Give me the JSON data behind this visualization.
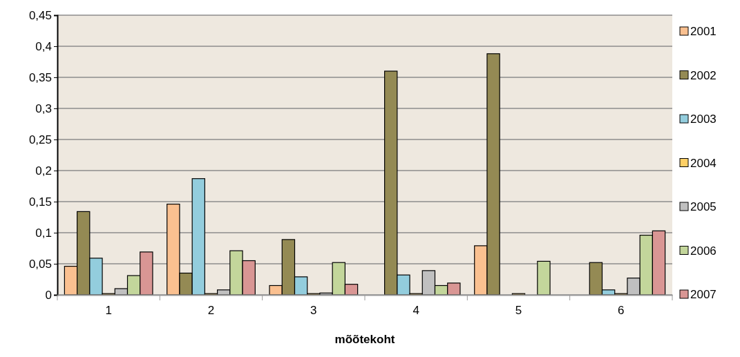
{
  "chart_data": {
    "type": "bar",
    "xlabel": "mõõtekoht",
    "categories": [
      "1",
      "2",
      "3",
      "4",
      "5",
      "6"
    ],
    "series": [
      {
        "name": "2001",
        "color": "#fac090",
        "values": [
          0.046,
          0.146,
          0.015,
          null,
          0.079,
          null
        ]
      },
      {
        "name": "2002",
        "color": "#948a54",
        "values": [
          0.134,
          0.035,
          0.089,
          0.36,
          0.388,
          0.052
        ]
      },
      {
        "name": "2003",
        "color": "#93cddd",
        "values": [
          0.059,
          0.187,
          0.029,
          0.032,
          null,
          0.008
        ]
      },
      {
        "name": "2004",
        "color": "#ffd066",
        "values": [
          0.002,
          0.002,
          0.002,
          0.002,
          0.002,
          0.002
        ]
      },
      {
        "name": "2005",
        "color": "#c0c0c0",
        "values": [
          0.01,
          0.008,
          0.003,
          0.039,
          null,
          0.027
        ]
      },
      {
        "name": "2006",
        "color": "#c3d69b",
        "values": [
          0.031,
          0.071,
          0.052,
          0.015,
          0.054,
          0.096
        ]
      },
      {
        "name": "2007",
        "color": "#d99694",
        "values": [
          0.069,
          0.055,
          0.017,
          0.019,
          null,
          0.103
        ]
      }
    ],
    "ylim": [
      0,
      0.45
    ],
    "yticks": [
      {
        "value": 0,
        "label": "0"
      },
      {
        "value": 0.05,
        "label": "0,05"
      },
      {
        "value": 0.1,
        "label": "0,1"
      },
      {
        "value": 0.15,
        "label": "0,15"
      },
      {
        "value": 0.2,
        "label": "0,2"
      },
      {
        "value": 0.25,
        "label": "0,25"
      },
      {
        "value": 0.3,
        "label": "0,3"
      },
      {
        "value": 0.35,
        "label": "0,35"
      },
      {
        "value": 0.4,
        "label": "0,4"
      },
      {
        "value": 0.45,
        "label": "0,45"
      }
    ],
    "grid": "y",
    "legend": "right"
  }
}
